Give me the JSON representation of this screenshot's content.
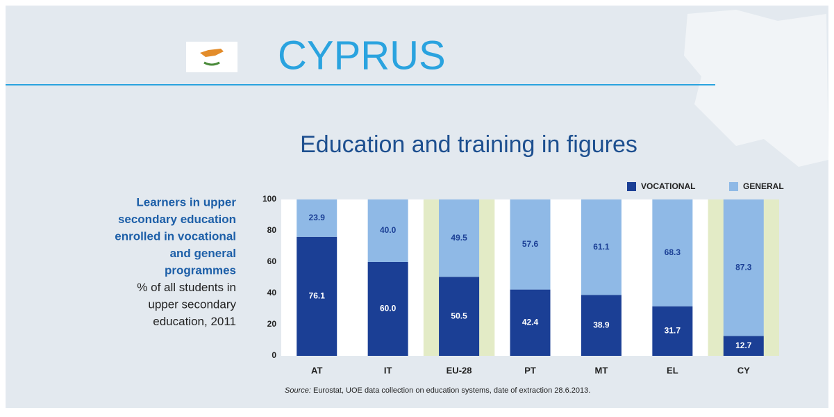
{
  "header": {
    "title": "CYPRUS"
  },
  "chart_data": {
    "type": "stacked_bar",
    "title": "Education and training in figures",
    "description_bold": [
      "Learners in upper",
      "secondary education",
      "enrolled in vocational",
      "and general",
      "programmes"
    ],
    "description": [
      "% of all students in",
      "upper secondary",
      "education, 2011"
    ],
    "categories": [
      "AT",
      "IT",
      "EU-28",
      "PT",
      "MT",
      "EL",
      "CY"
    ],
    "highlighted": [
      2,
      6
    ],
    "highlight_color": "#e3ebc6",
    "series": [
      {
        "name": "VOCATIONAL",
        "color": "#1b3f95",
        "label_color": "#ffffff",
        "values": [
          76.1,
          60.0,
          50.5,
          42.4,
          38.9,
          31.7,
          12.7
        ],
        "value_labels": [
          "76.1",
          "60.0",
          "50.5",
          "42.4",
          "38.9",
          "31.7",
          "12.7"
        ]
      },
      {
        "name": "GENERAL",
        "color": "#8fb9e6",
        "label_color": "#1b3f95",
        "values": [
          23.9,
          40.0,
          49.5,
          57.6,
          61.1,
          68.3,
          87.3
        ],
        "value_labels": [
          "23.9",
          "40.0",
          "49.5",
          "57.6",
          "61.1",
          "68.3",
          "87.3"
        ]
      }
    ],
    "ylim": [
      0,
      100
    ],
    "yticks": [
      0,
      20,
      40,
      60,
      80,
      100
    ],
    "grid": false,
    "source_label": "Source:",
    "source": " Eurostat, UOE data collection on education systems, date of extraction 28.6.2013."
  }
}
